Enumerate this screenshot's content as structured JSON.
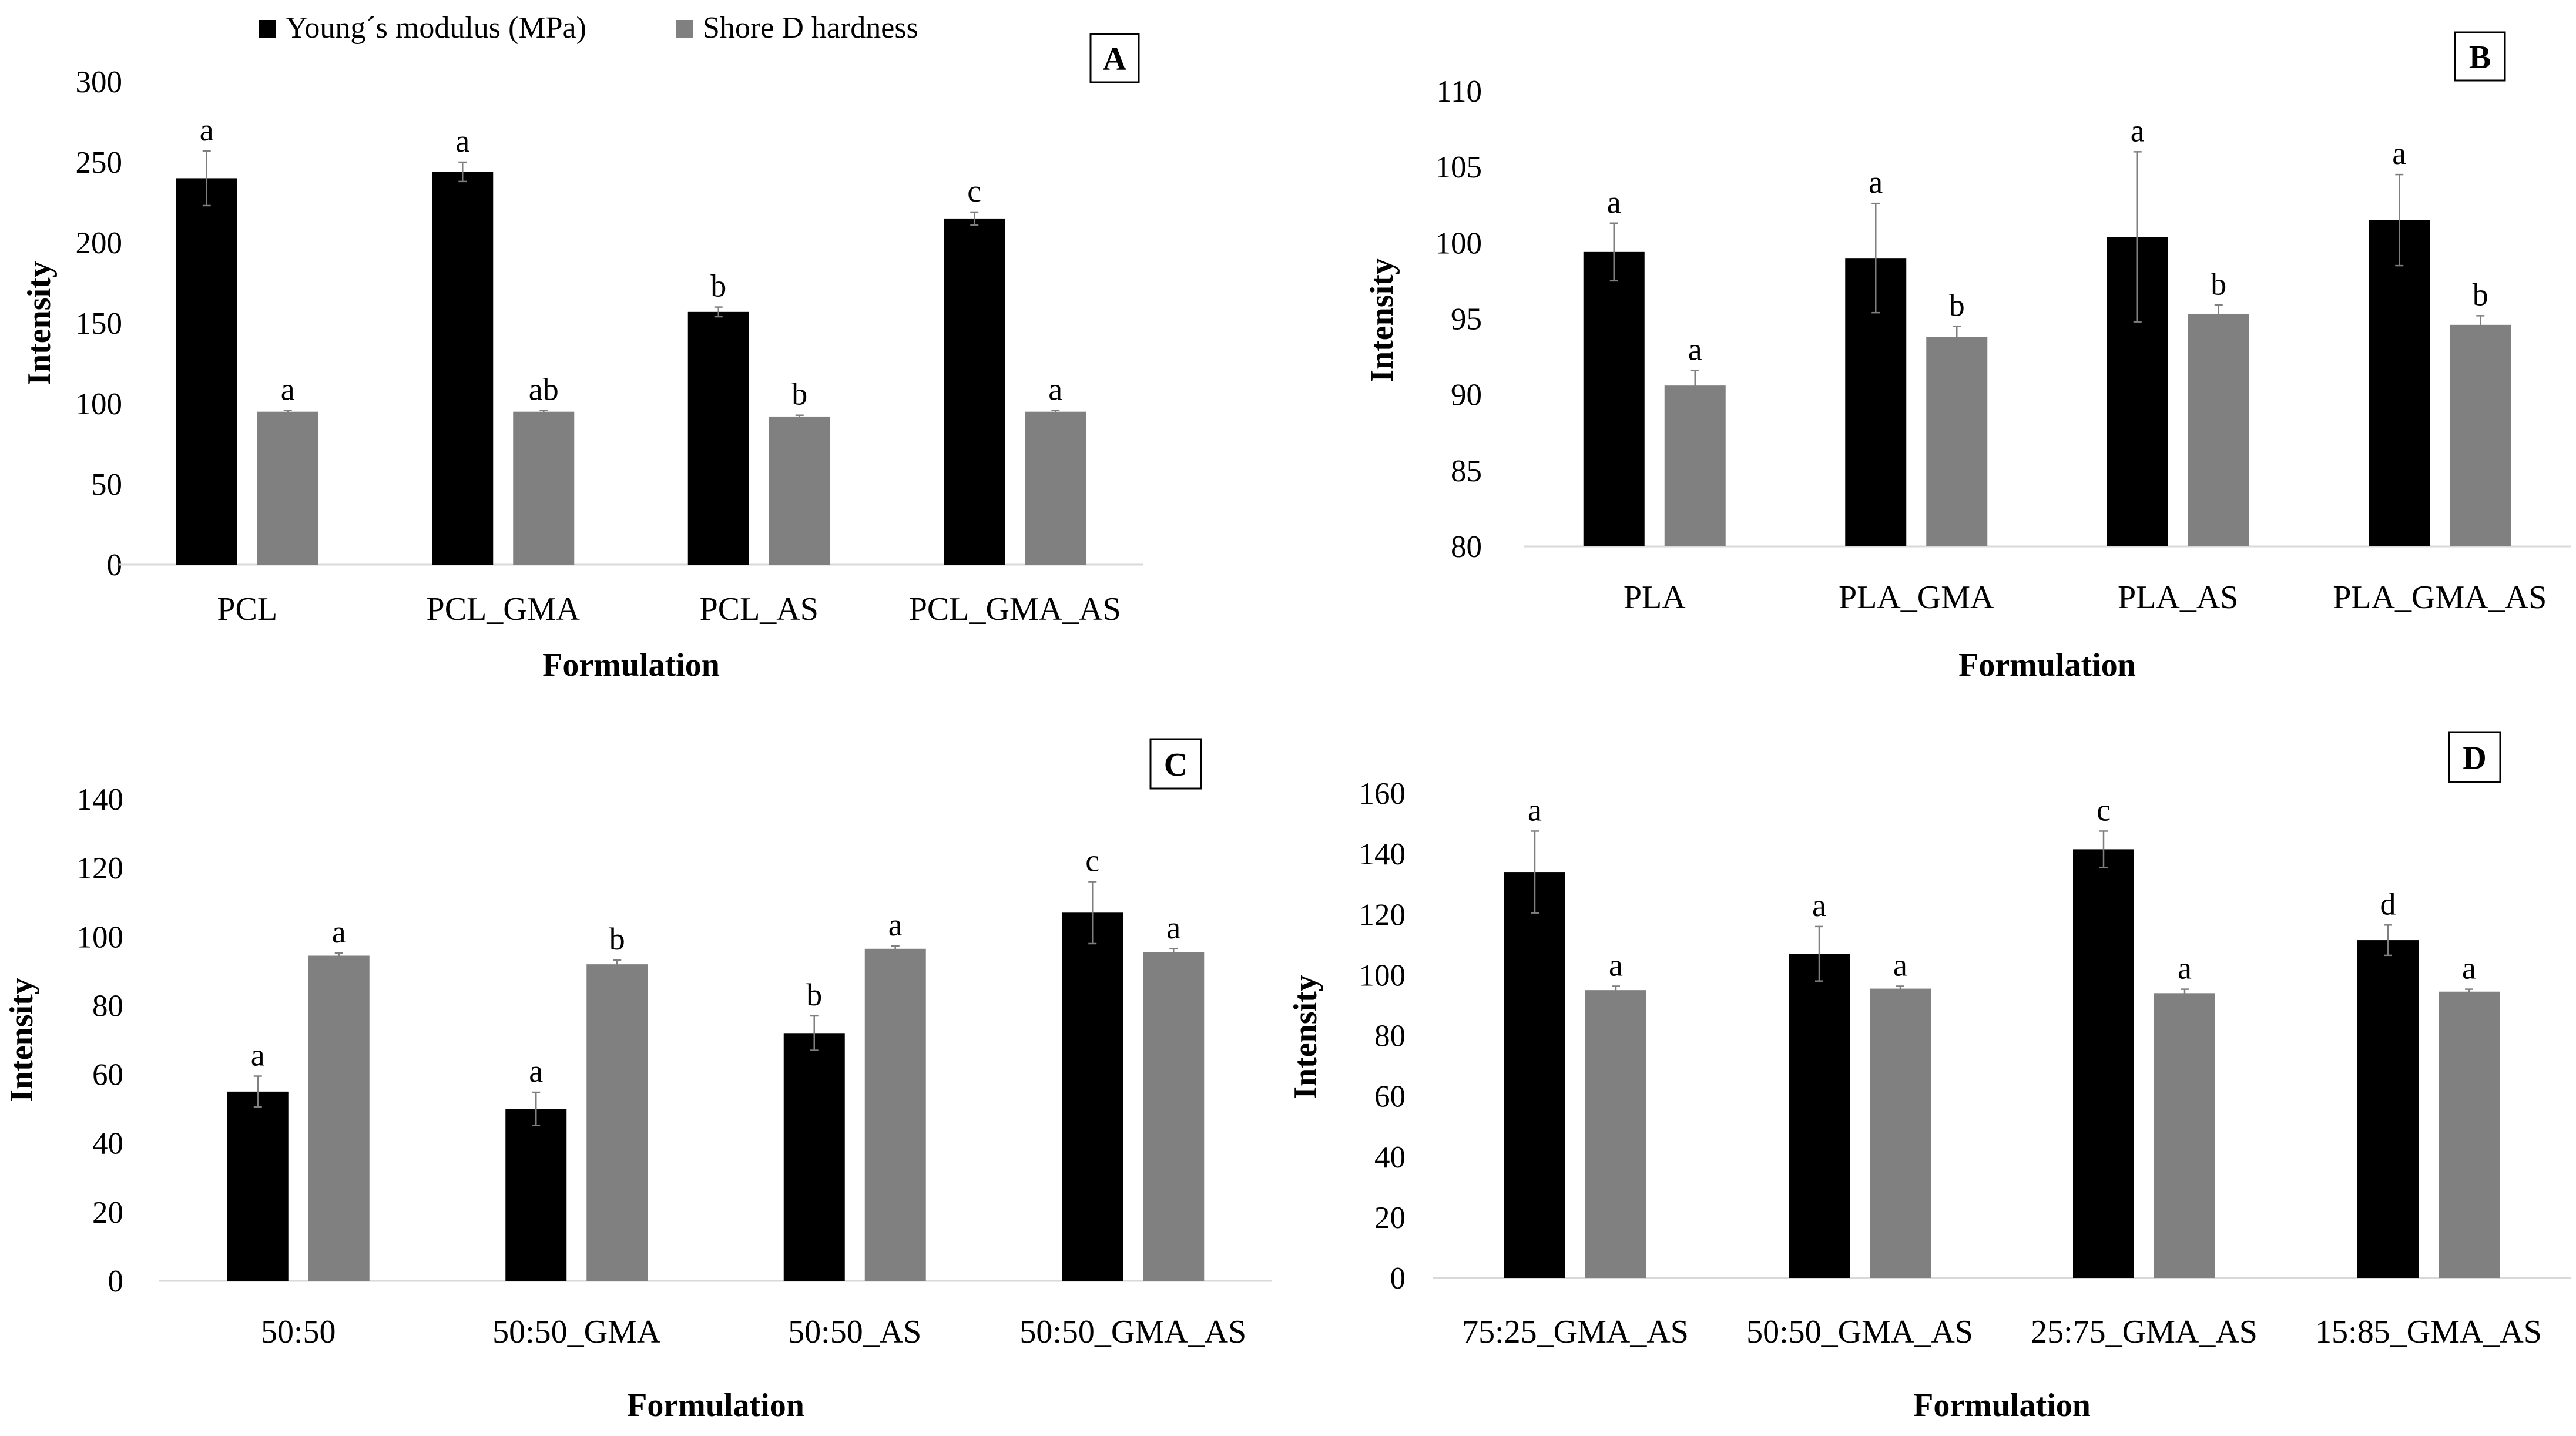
{
  "legend": {
    "position": "top-left",
    "items": [
      {
        "name": "Young´s modulus (MPa)",
        "color": "#000000"
      },
      {
        "name": "Shore D hardness",
        "color": "#808080"
      }
    ]
  },
  "chart_data": [
    {
      "type": "bar",
      "panel_tag": "A",
      "xlabel": "Formulation",
      "ylabel": "Intensity",
      "ylim": [
        0,
        300
      ],
      "yticks": [
        0,
        50,
        100,
        150,
        200,
        250,
        300
      ],
      "categories": [
        "PCL",
        "PCL_GMA",
        "PCL_AS",
        "PCL_GMA_AS"
      ],
      "series": [
        {
          "name": "Young´s modulus (MPa)",
          "color": "#000000",
          "values": [
            240,
            244,
            157,
            215
          ],
          "errors": [
            17,
            6,
            3,
            4
          ],
          "labels": [
            "a",
            "a",
            "b",
            "c"
          ]
        },
        {
          "name": "Shore D hardness",
          "color": "#808080",
          "values": [
            95,
            95,
            92,
            95
          ],
          "errors": [
            0.8,
            0.8,
            0.8,
            0.8
          ],
          "labels": [
            "a",
            "ab",
            "b",
            "a"
          ]
        }
      ]
    },
    {
      "type": "bar",
      "panel_tag": "B",
      "xlabel": "Formulation",
      "ylabel": "Intensity",
      "ylim": [
        80,
        110
      ],
      "yticks": [
        80,
        85,
        90,
        95,
        100,
        105,
        110
      ],
      "categories": [
        "PLA",
        "PLA_GMA",
        "PLA_AS",
        "PLA_GMA_AS"
      ],
      "series": [
        {
          "name": "Young´s modulus (MPa)",
          "color": "#000000",
          "values": [
            99.4,
            99.0,
            100.4,
            101.5
          ],
          "errors": [
            1.9,
            3.6,
            5.6,
            3.0
          ],
          "labels": [
            "a",
            "a",
            "a",
            "a"
          ]
        },
        {
          "name": "Shore D hardness",
          "color": "#808080",
          "values": [
            90.6,
            93.8,
            95.3,
            94.6
          ],
          "errors": [
            1.0,
            0.7,
            0.6,
            0.6
          ],
          "labels": [
            "a",
            "b",
            "b",
            "b"
          ]
        }
      ]
    },
    {
      "type": "bar",
      "panel_tag": "C",
      "xlabel": "Formulation",
      "ylabel": "Intensity",
      "ylim": [
        0,
        140
      ],
      "yticks": [
        0,
        20,
        40,
        60,
        80,
        100,
        120,
        140
      ],
      "categories": [
        "50:50",
        "50:50_GMA",
        "50:50_AS",
        "50:50_GMA_AS"
      ],
      "series": [
        {
          "name": "Young´s modulus (MPa)",
          "color": "#000000",
          "values": [
            55,
            50,
            72,
            107
          ],
          "errors": [
            4.5,
            4.8,
            5,
            9
          ],
          "labels": [
            "a",
            "a",
            "b",
            "c"
          ]
        },
        {
          "name": "Shore D hardness",
          "color": "#808080",
          "values": [
            94.5,
            92,
            96.5,
            95.5
          ],
          "errors": [
            0.8,
            1.2,
            0.8,
            1.0
          ],
          "labels": [
            "a",
            "b",
            "a",
            "a"
          ]
        }
      ]
    },
    {
      "type": "bar",
      "panel_tag": "D",
      "xlabel": "Formulation",
      "ylabel": "Intensity",
      "ylim": [
        0,
        160
      ],
      "yticks": [
        0,
        20,
        40,
        60,
        80,
        100,
        120,
        140,
        160
      ],
      "categories": [
        "75:25_GMA_AS",
        "50:50_GMA_AS",
        "25:75_GMA_AS",
        "15:85_GMA_AS"
      ],
      "series": [
        {
          "name": "Young´s modulus (MPa)",
          "color": "#000000",
          "values": [
            134,
            107,
            141.5,
            111.5
          ],
          "errors": [
            13.5,
            9,
            6,
            5
          ],
          "labels": [
            "a",
            "a",
            "c",
            "d"
          ]
        },
        {
          "name": "Shore D hardness",
          "color": "#808080",
          "values": [
            95,
            95.5,
            94,
            94.5
          ],
          "errors": [
            1.3,
            0.8,
            1.3,
            0.8
          ],
          "labels": [
            "a",
            "a",
            "a",
            "a"
          ]
        }
      ]
    }
  ]
}
